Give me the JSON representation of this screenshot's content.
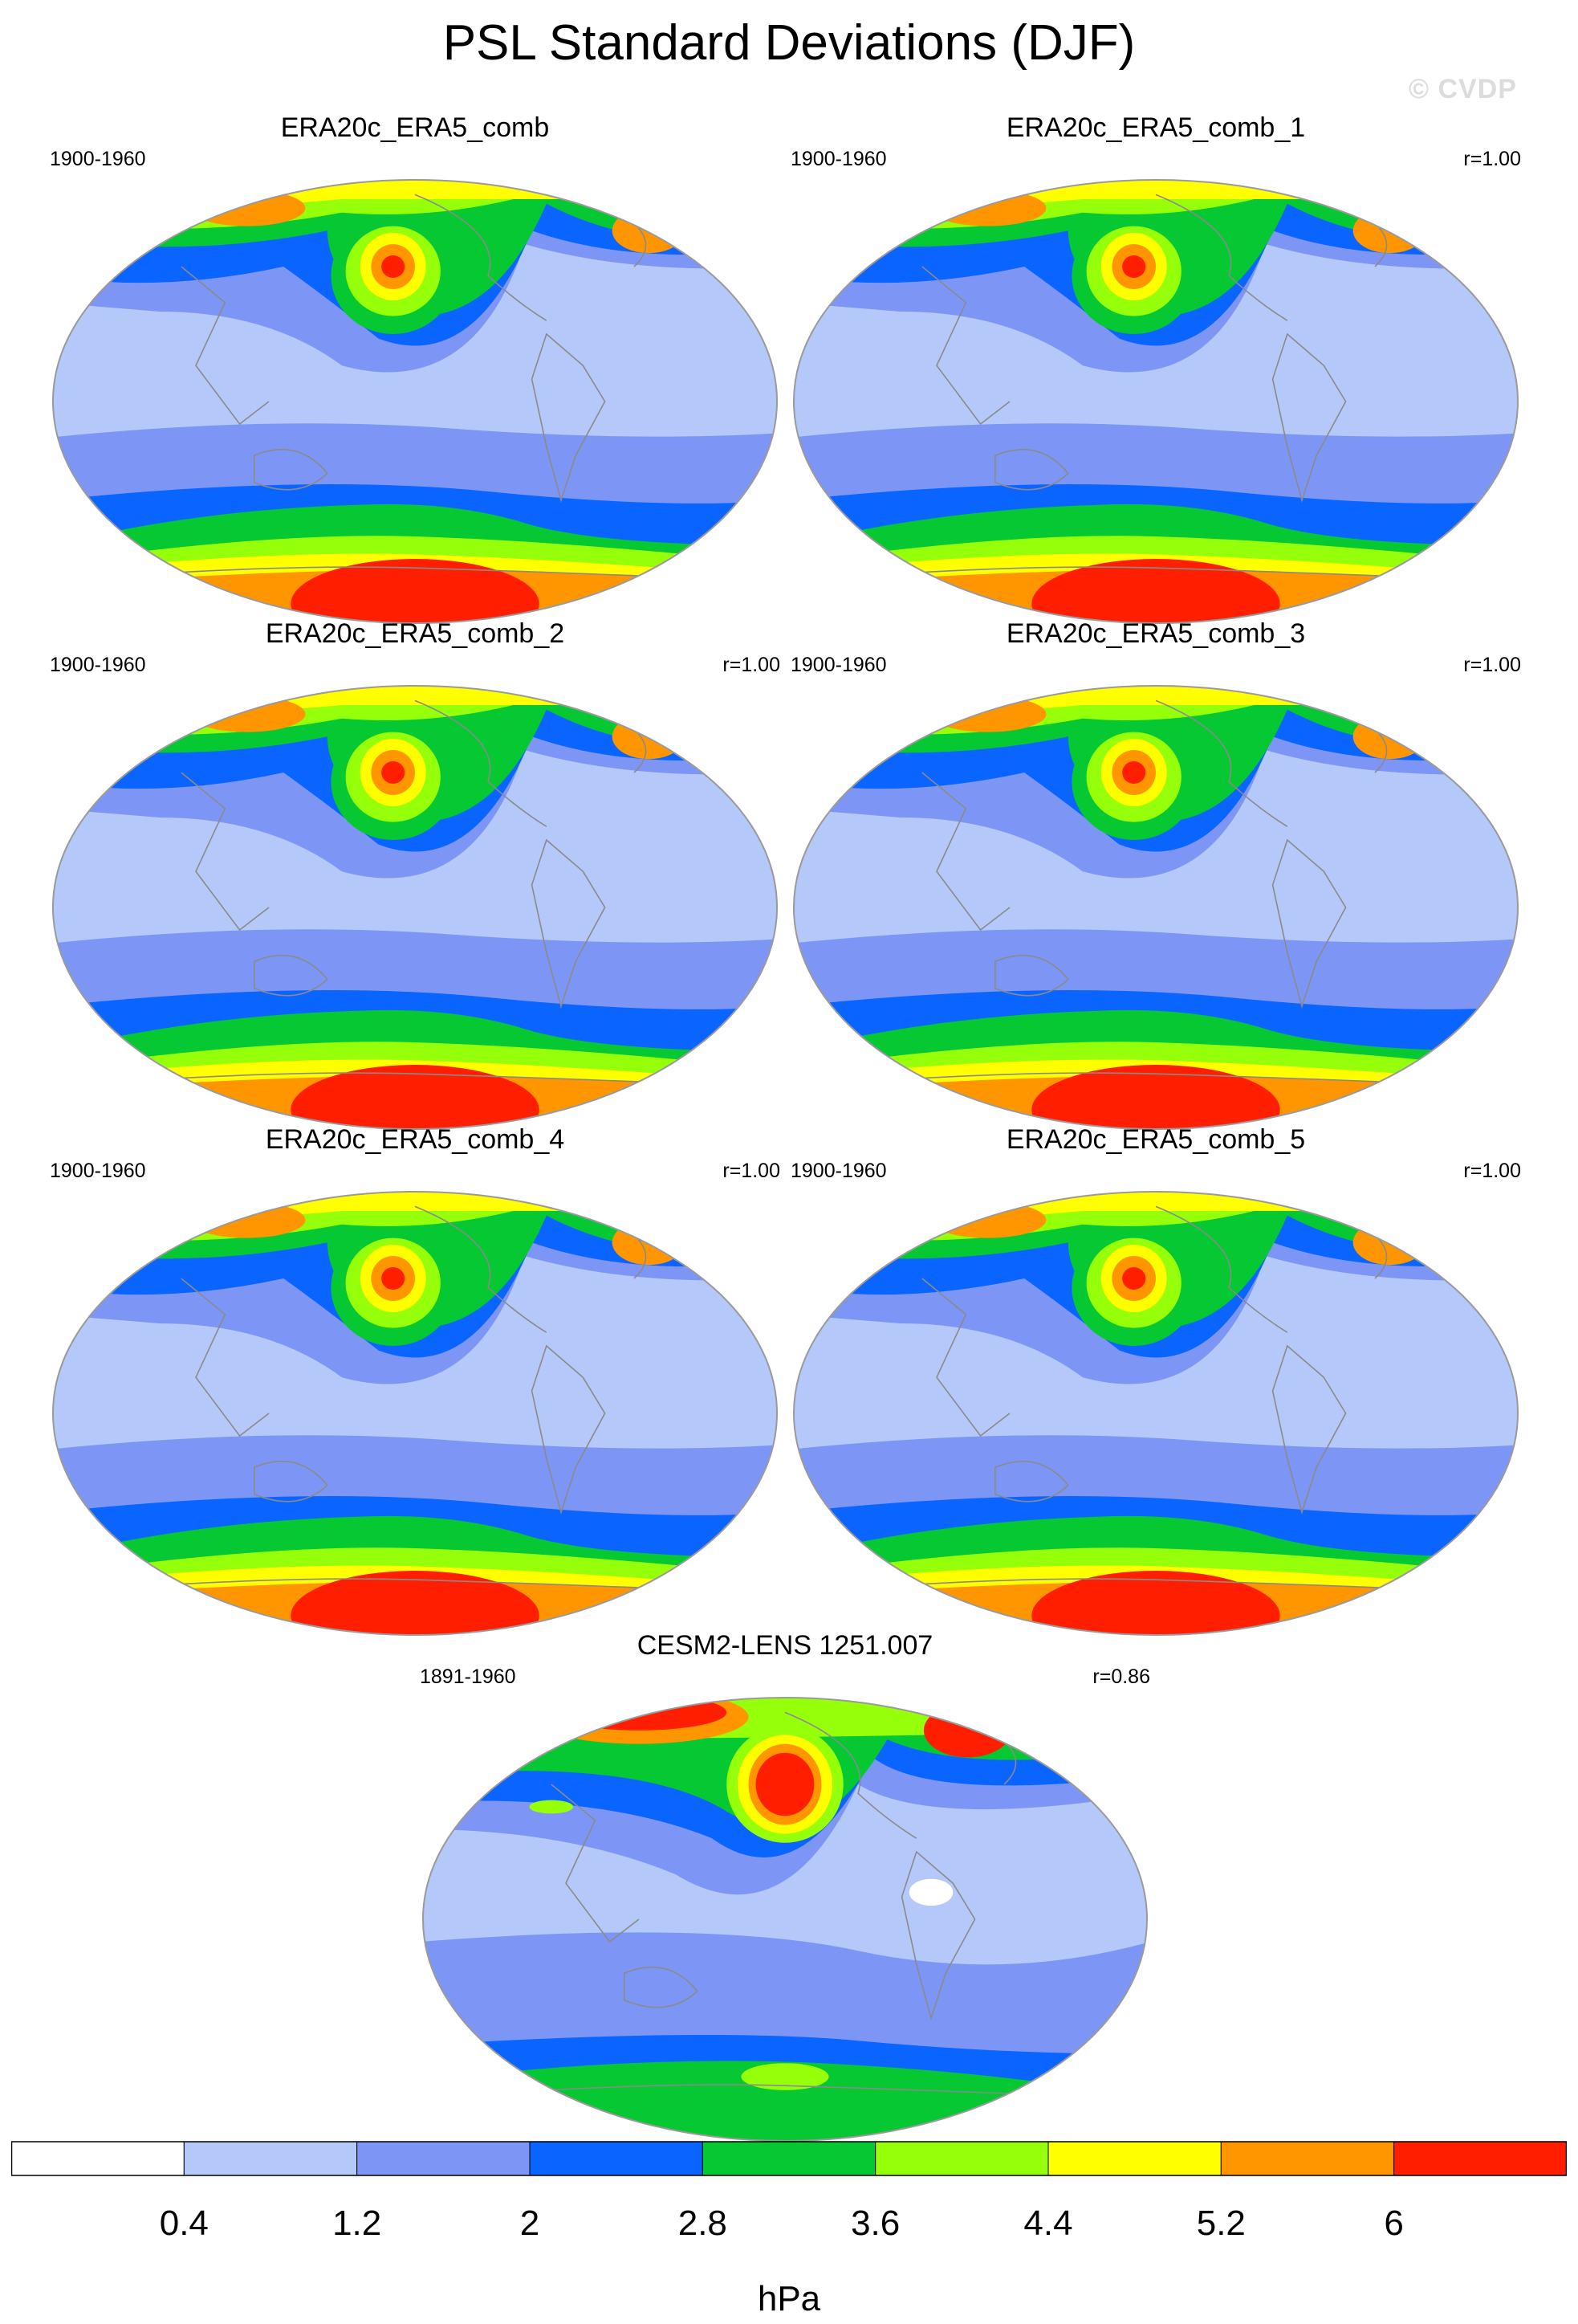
{
  "title": "PSL Standard Deviations (DJF)",
  "watermark": "© CVDP",
  "panels": [
    {
      "name": "ERA20c_ERA5_comb",
      "period": "1900-1960",
      "r": ""
    },
    {
      "name": "ERA20c_ERA5_comb_1",
      "period": "1900-1960",
      "r": "r=1.00"
    },
    {
      "name": "ERA20c_ERA5_comb_2",
      "period": "1900-1960",
      "r": "r=1.00"
    },
    {
      "name": "ERA20c_ERA5_comb_3",
      "period": "1900-1960",
      "r": "r=1.00"
    },
    {
      "name": "ERA20c_ERA5_comb_4",
      "period": "1900-1960",
      "r": "r=1.00"
    },
    {
      "name": "ERA20c_ERA5_comb_5",
      "period": "1900-1960",
      "r": "r=1.00"
    },
    {
      "name": "CESM2-LENS 1251.007",
      "period": "1891-1960",
      "r": "r=0.86"
    }
  ],
  "colorbar": {
    "unit": "hPa",
    "labels": [
      "0.4",
      "1.2",
      "2",
      "2.8",
      "3.6",
      "4.4",
      "5.2",
      "6"
    ],
    "colors": [
      "#ffffff",
      "#b4c8fa",
      "#7d96f5",
      "#0a64ff",
      "#05c832",
      "#96ff0a",
      "#ffff00",
      "#ff9600",
      "#ff1e00"
    ]
  }
}
